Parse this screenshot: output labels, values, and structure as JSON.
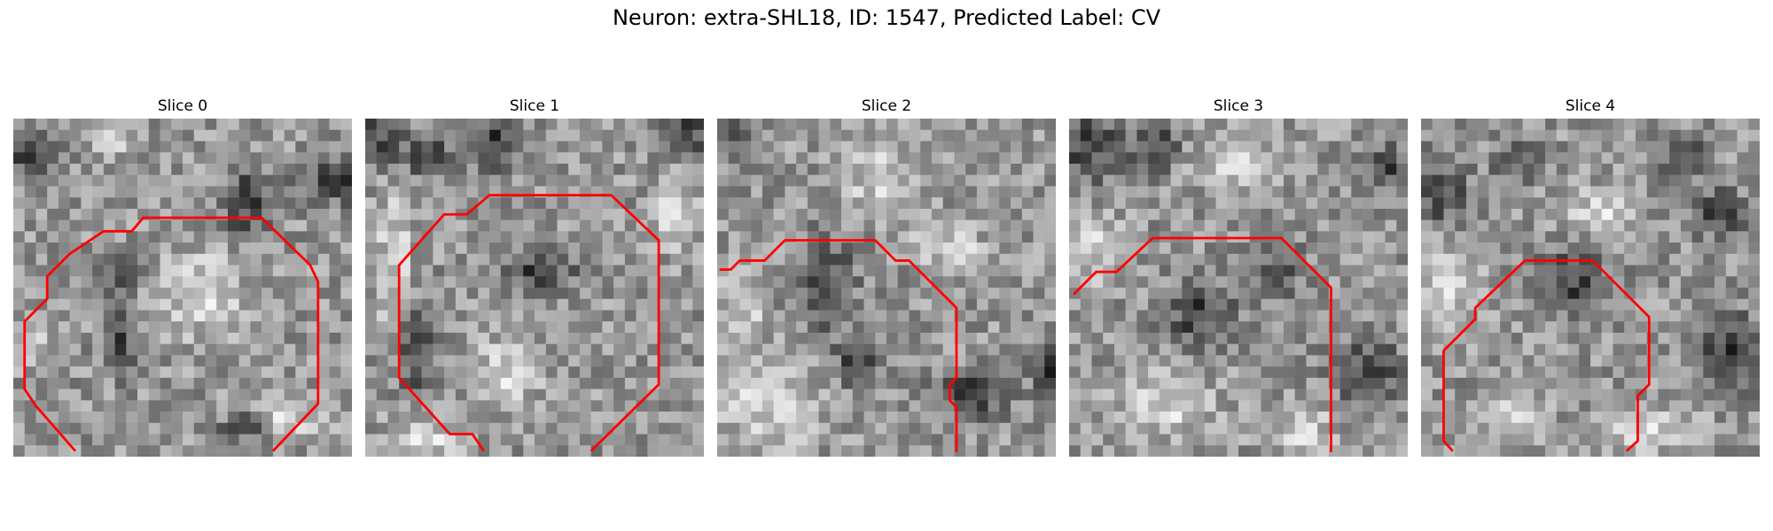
{
  "figure": {
    "title": "Neuron: extra-SHL18, ID: 1547, Predicted Label: CV",
    "contour_color": "#ff0000",
    "colormap": "gray",
    "grid_size": 30
  },
  "panels": [
    {
      "title": "Slice 0",
      "dark_regions": [
        [
          9,
          13,
          2,
          1.6
        ],
        [
          9,
          19,
          1.5,
          3
        ],
        [
          20,
          27,
          2,
          1.2
        ],
        [
          28,
          5,
          3,
          2
        ],
        [
          1,
          3,
          2,
          2
        ],
        [
          20,
          7,
          2,
          3
        ]
      ],
      "bright_regions": [
        [
          8,
          1,
          2,
          2
        ],
        [
          1,
          19,
          2,
          2
        ],
        [
          24,
          26,
          3,
          2
        ],
        [
          16,
          15,
          4,
          4
        ]
      ],
      "contour": [
        [
          5.5,
          29.5
        ],
        [
          2,
          25.5
        ],
        [
          1,
          24
        ],
        [
          1,
          18
        ],
        [
          3,
          16
        ],
        [
          3,
          14
        ],
        [
          5,
          12
        ],
        [
          8,
          10
        ],
        [
          10.5,
          10
        ],
        [
          11.5,
          8.8
        ],
        [
          22,
          8.8
        ],
        [
          26.3,
          13
        ],
        [
          27,
          14.5
        ],
        [
          27,
          25.3
        ],
        [
          23,
          29.5
        ]
      ]
    },
    {
      "title": "Slice 1",
      "dark_regions": [
        [
          1,
          1,
          2,
          3
        ],
        [
          11,
          1,
          2,
          3
        ],
        [
          5,
          3,
          2,
          2
        ],
        [
          28,
          1,
          2,
          2
        ],
        [
          4,
          20,
          1.8,
          4
        ],
        [
          15,
          13,
          3,
          2
        ]
      ],
      "bright_regions": [
        [
          2,
          12,
          1.5,
          8
        ],
        [
          12,
          22,
          3,
          3
        ],
        [
          5,
          28,
          3,
          2
        ],
        [
          27,
          8,
          2,
          3
        ]
      ],
      "contour": [
        [
          10.5,
          29.5
        ],
        [
          9.5,
          28
        ],
        [
          7.5,
          28
        ],
        [
          3,
          23
        ],
        [
          3,
          13
        ],
        [
          7,
          8.5
        ],
        [
          9,
          8.5
        ],
        [
          11,
          6.8
        ],
        [
          21.8,
          6.8
        ],
        [
          26,
          10.8
        ],
        [
          26,
          23.6
        ],
        [
          20,
          29.5
        ]
      ]
    },
    {
      "title": "Slice 2",
      "dark_regions": [
        [
          1,
          1,
          1.5,
          2
        ],
        [
          9,
          14,
          2.5,
          4
        ],
        [
          22,
          24,
          3,
          2
        ],
        [
          12,
          21,
          2,
          2
        ],
        [
          29,
          22,
          1.5,
          3
        ]
      ],
      "bright_regions": [
        [
          14,
          5,
          3,
          3
        ],
        [
          4,
          25,
          4,
          4
        ],
        [
          20,
          11,
          3,
          2
        ],
        [
          2,
          16,
          2,
          3
        ]
      ],
      "contour": [
        [
          0.2,
          13.4
        ],
        [
          1.2,
          13.4
        ],
        [
          2,
          12.6
        ],
        [
          4.2,
          12.6
        ],
        [
          6,
          10.8
        ],
        [
          14,
          10.8
        ],
        [
          15.8,
          12.6
        ],
        [
          17,
          12.6
        ],
        [
          21.2,
          16.8
        ],
        [
          21.2,
          23
        ],
        [
          20.6,
          23.6
        ],
        [
          20.6,
          25
        ],
        [
          21.2,
          25.6
        ],
        [
          21.2,
          29.6
        ]
      ]
    },
    {
      "title": "Slice 3",
      "dark_regions": [
        [
          1,
          2,
          3,
          3
        ],
        [
          7,
          2,
          2,
          2
        ],
        [
          28,
          4,
          2,
          2
        ],
        [
          11,
          17,
          3,
          3
        ],
        [
          26,
          22,
          3,
          3
        ],
        [
          18,
          13,
          2,
          2
        ]
      ],
      "bright_regions": [
        [
          2,
          11,
          2,
          3
        ],
        [
          14,
          4,
          3,
          2
        ],
        [
          8,
          25,
          4,
          3
        ],
        [
          20,
          27,
          3,
          2
        ]
      ],
      "contour": [
        [
          0.4,
          15.6
        ],
        [
          2.4,
          13.6
        ],
        [
          4.2,
          13.6
        ],
        [
          7.4,
          10.6
        ],
        [
          18.8,
          10.6
        ],
        [
          23.2,
          15
        ],
        [
          23.2,
          29.6
        ]
      ]
    },
    {
      "title": "Slice 4",
      "dark_regions": [
        [
          1,
          6,
          2.5,
          3
        ],
        [
          8,
          3,
          2,
          2
        ],
        [
          23,
          3,
          2,
          2
        ],
        [
          27,
          20,
          3,
          3
        ],
        [
          13,
          14,
          3,
          3
        ],
        [
          26,
          8,
          2,
          2
        ]
      ],
      "bright_regions": [
        [
          2,
          14,
          3,
          4
        ],
        [
          15,
          8,
          3,
          2
        ],
        [
          20,
          27,
          4,
          2
        ],
        [
          8,
          25,
          2,
          3
        ]
      ],
      "contour": [
        [
          2.8,
          29.5
        ],
        [
          2,
          28.6
        ],
        [
          2,
          20.6
        ],
        [
          4.8,
          17.8
        ],
        [
          4.8,
          16.8
        ],
        [
          9.2,
          12.6
        ],
        [
          15.2,
          12.6
        ],
        [
          20.2,
          17.6
        ],
        [
          20.2,
          23.6
        ],
        [
          19.2,
          24.6
        ],
        [
          19.2,
          28.6
        ],
        [
          18.2,
          29.5
        ]
      ]
    }
  ]
}
